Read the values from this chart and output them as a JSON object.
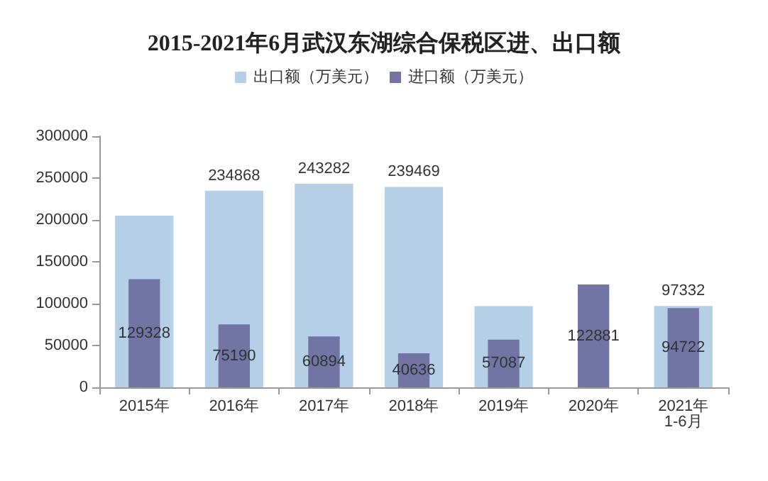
{
  "chart_data": {
    "type": "bar",
    "title": "2015-2021年6月武汉东湖综合保税区进、出口额",
    "categories": [
      "2015年",
      "2016年",
      "2017年",
      "2018年",
      "2019年",
      "2020年",
      "2021年\n1-6月"
    ],
    "series": [
      {
        "name": "出口额（万美元）",
        "color": "#b4cfe6",
        "values": [
          205000,
          234868,
          243282,
          239469,
          97000,
          null,
          97332
        ],
        "value_labels": [
          null,
          "234868",
          "243282",
          "239469",
          null,
          null,
          "97332"
        ]
      },
      {
        "name": "进口额（万美元）",
        "color": "#7275a3",
        "values": [
          129328,
          75190,
          60894,
          40636,
          57087,
          122881,
          94722
        ],
        "value_labels": [
          "129328",
          "75190",
          "60894",
          "40636",
          "57087",
          "122881",
          "94722"
        ]
      }
    ],
    "ylim": [
      0,
      300000
    ],
    "yticks": [
      0,
      50000,
      100000,
      150000,
      200000,
      250000,
      300000
    ],
    "grid": false,
    "legend": "top"
  }
}
